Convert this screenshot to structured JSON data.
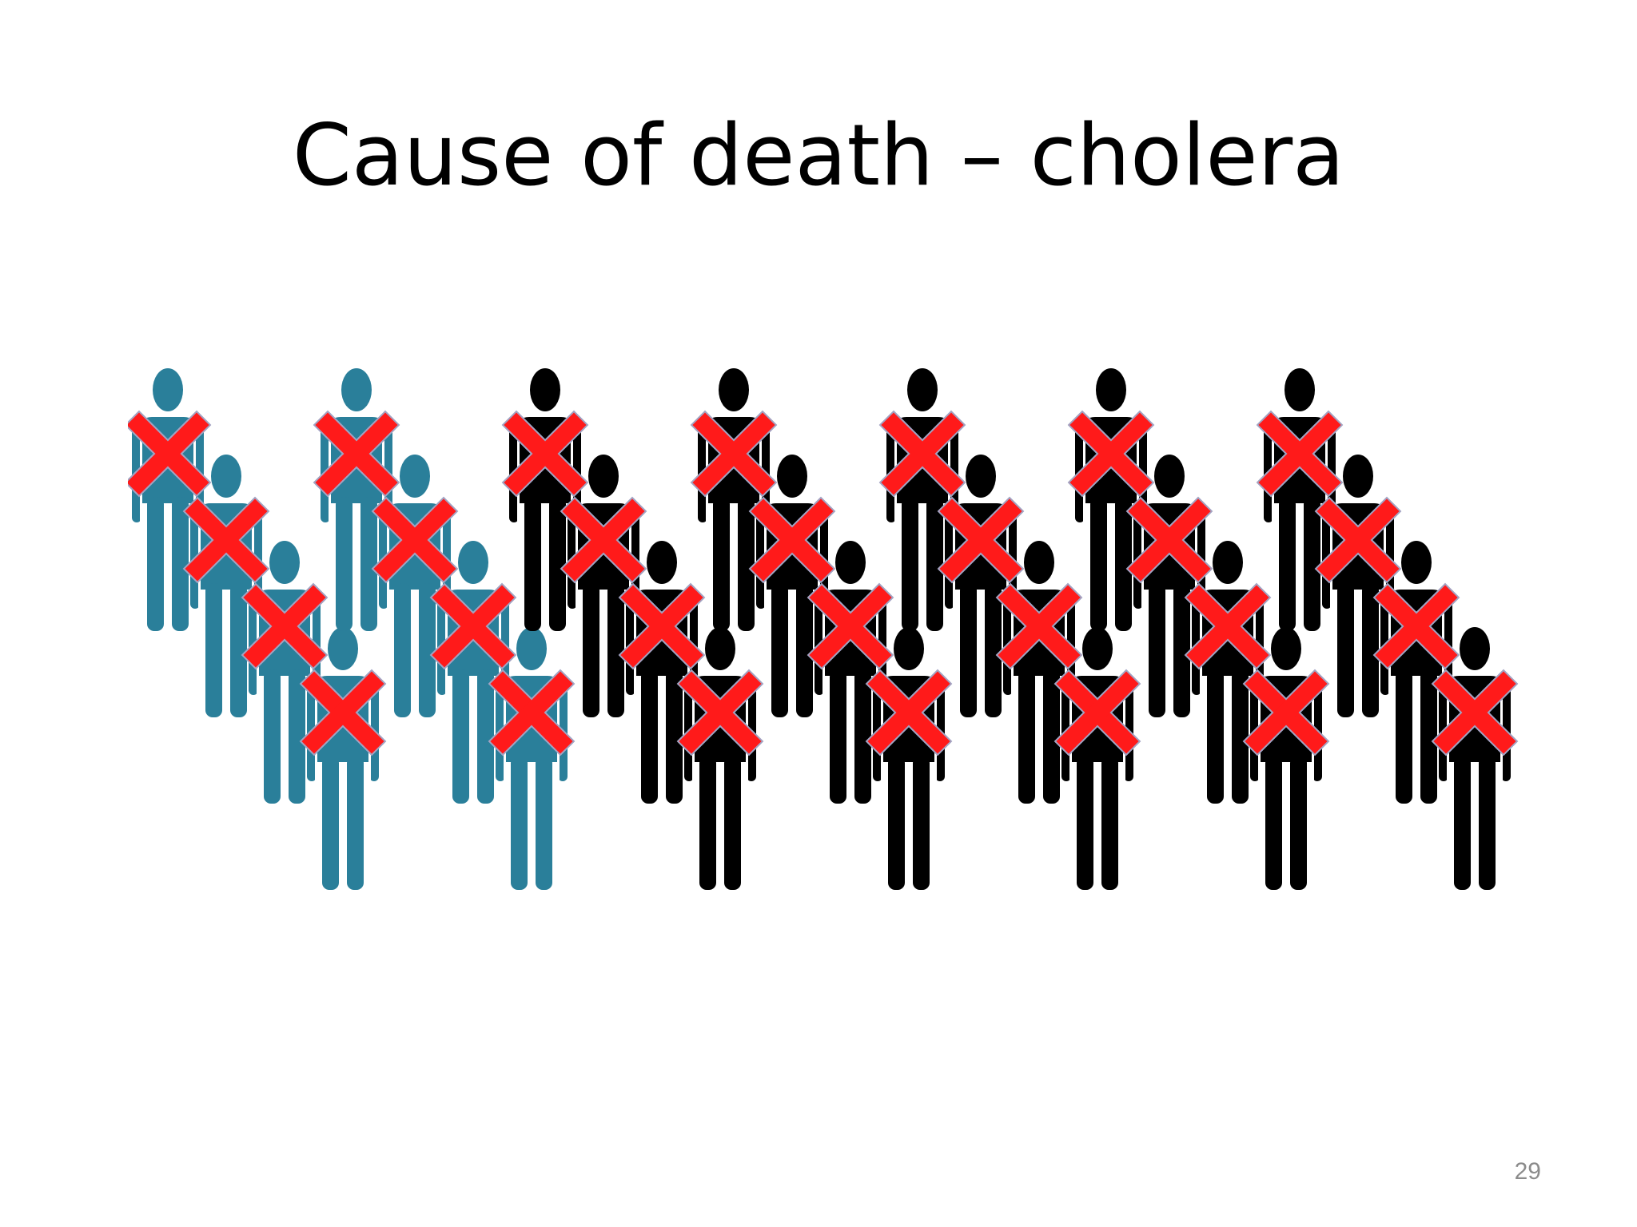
{
  "slide": {
    "title": "Cause of death – cholera",
    "page_number": "29"
  },
  "figure": {
    "groups": [
      {
        "color": "#2a7f9a",
        "count": 4
      },
      {
        "color": "#2a7f9a",
        "count": 4
      },
      {
        "color": "#000000",
        "count": 4
      },
      {
        "color": "#000000",
        "count": 4
      },
      {
        "color": "#000000",
        "count": 4
      },
      {
        "color": "#000000",
        "count": 4
      },
      {
        "color": "#000000",
        "count": 4
      }
    ],
    "person_icon": "person-icon",
    "mark_icon": "red-x-icon",
    "mark_color": "#ff1a1a",
    "mark_outline": "#a3a3c2"
  }
}
